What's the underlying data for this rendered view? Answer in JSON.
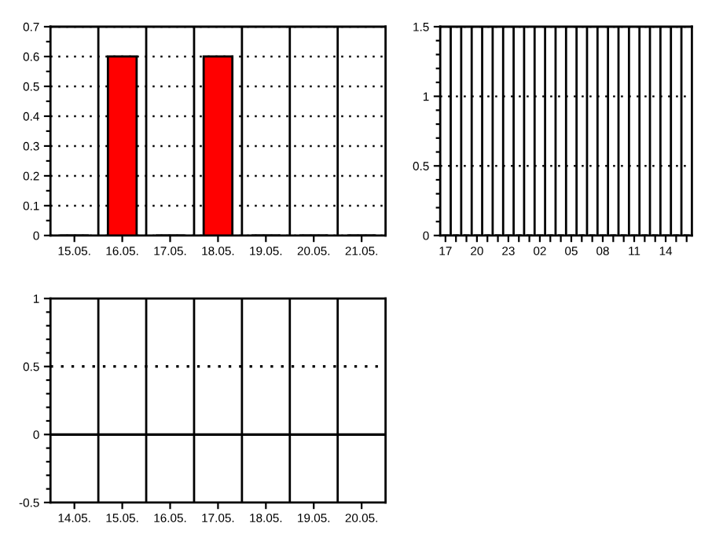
{
  "chart_data": [
    {
      "type": "bar",
      "categories": [
        "15.05.",
        "16.05.",
        "17.05.",
        "18.05.",
        "19.05.",
        "20.05.",
        "21.05."
      ],
      "values": [
        0,
        0.6,
        0,
        0.6,
        0,
        0,
        0
      ],
      "color": "#ff0000",
      "ylim": [
        0,
        0.7
      ],
      "yticks": [
        0,
        0.1,
        0.2,
        0.3,
        0.4,
        0.5,
        0.6,
        0.7
      ],
      "grid": "y"
    },
    {
      "type": "bar",
      "categories": [
        "17",
        null,
        null,
        "20",
        null,
        null,
        "23",
        null,
        null,
        "02",
        null,
        null,
        "05",
        null,
        null,
        "08",
        null,
        null,
        "11",
        null,
        null,
        "14",
        null,
        null
      ],
      "values": [
        0,
        0,
        0,
        0,
        0,
        0,
        0,
        0,
        0,
        0,
        0,
        0,
        0,
        0,
        0,
        0,
        0,
        0,
        0,
        0,
        0,
        0,
        0,
        0
      ],
      "color": "#ff0000",
      "ylim": [
        0,
        1.5
      ],
      "yticks": [
        0,
        0.5,
        1,
        1.5
      ],
      "grid": "y"
    },
    {
      "type": "bar",
      "categories": [
        "14.05.",
        "15.05.",
        "16.05.",
        "17.05.",
        "18.05.",
        "19.05.",
        "20.05."
      ],
      "values": [
        null,
        null,
        null,
        null,
        null,
        null,
        null
      ],
      "color": "#ff0000",
      "ylim": [
        -0.5,
        1
      ],
      "yticks": [
        -0.5,
        0,
        0.5,
        1
      ],
      "ref_lines": [
        {
          "axis": "y",
          "value": 0,
          "color": "#000000",
          "line_style": "solid"
        },
        {
          "axis": "y",
          "value": 0.5,
          "color": "#000000",
          "line_style": "dotted"
        }
      ]
    }
  ]
}
